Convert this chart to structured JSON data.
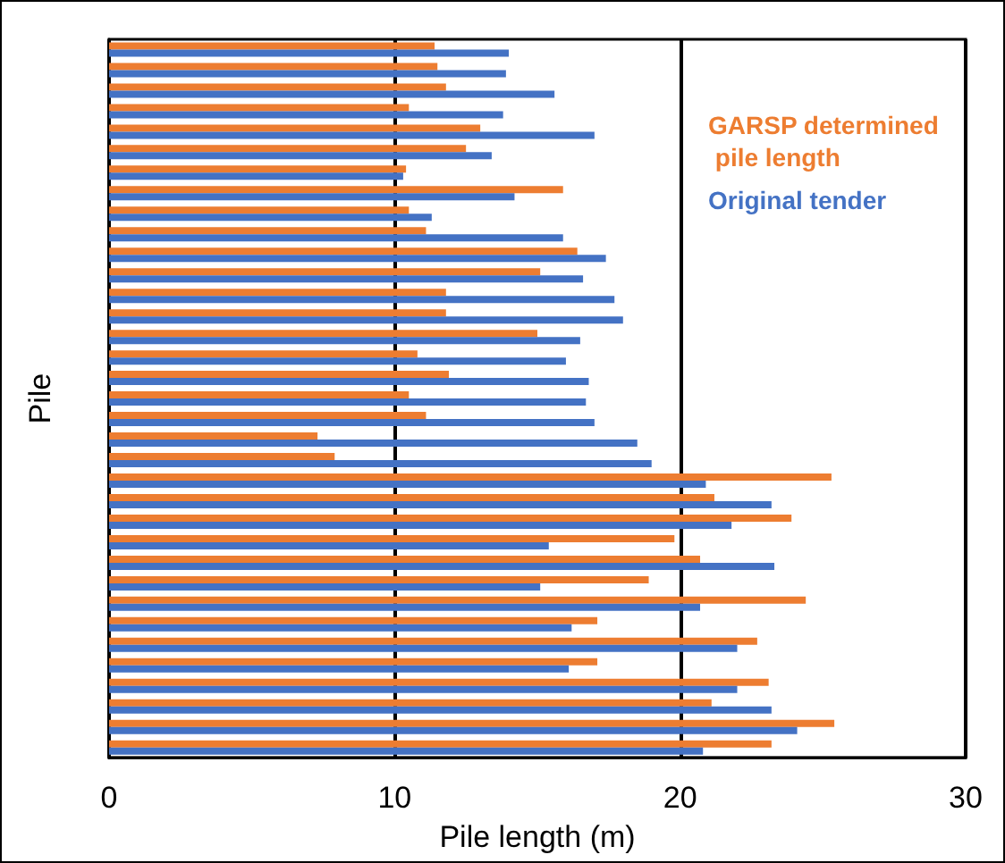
{
  "chart_data": {
    "type": "bar",
    "orientation": "horizontal",
    "xlabel": "Pile length (m)",
    "ylabel": "Pile",
    "categories": [
      null,
      null,
      null,
      null,
      null,
      null,
      null,
      null,
      null,
      null,
      null,
      null,
      null,
      null,
      null,
      null,
      null,
      null,
      null,
      null,
      null,
      null,
      null,
      null,
      null,
      null,
      null,
      null,
      null,
      null,
      null,
      null,
      null,
      null,
      null
    ],
    "series": [
      {
        "name": "GARSP determined pile length",
        "color": "#ed7d31",
        "values": [
          11.4,
          11.5,
          11.8,
          10.5,
          13.0,
          12.5,
          10.4,
          15.9,
          10.5,
          11.1,
          16.4,
          15.1,
          11.8,
          11.8,
          15.0,
          10.8,
          11.9,
          10.5,
          11.1,
          7.3,
          7.9,
          25.3,
          21.2,
          23.9,
          19.8,
          20.7,
          18.9,
          24.4,
          17.1,
          22.7,
          17.1,
          23.1,
          21.1,
          25.4,
          23.2
        ]
      },
      {
        "name": "Original tender",
        "color": "#4472c4",
        "values": [
          14.0,
          13.9,
          15.6,
          13.8,
          17.0,
          13.4,
          10.3,
          14.2,
          11.3,
          15.9,
          17.4,
          16.6,
          17.7,
          18.0,
          16.5,
          16.0,
          16.8,
          16.7,
          17.0,
          18.5,
          19.0,
          20.9,
          23.2,
          21.8,
          15.4,
          23.3,
          15.1,
          20.7,
          16.2,
          22.0,
          16.1,
          22.0,
          23.2,
          24.1,
          20.8
        ]
      }
    ],
    "xlim": [
      0,
      30
    ],
    "xticks": [
      0,
      10,
      20,
      30
    ],
    "grid": "x",
    "legend": "top right",
    "tick_labels": "x"
  }
}
